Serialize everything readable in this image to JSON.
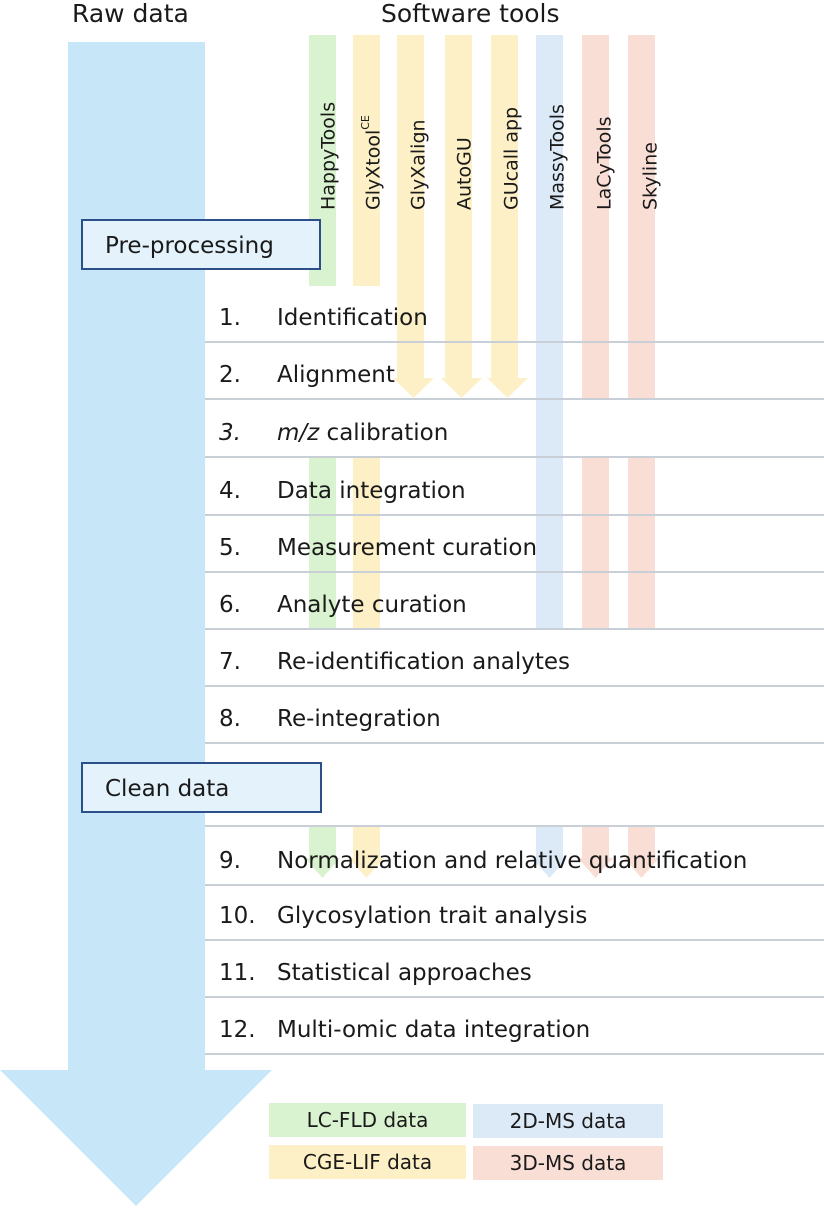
{
  "headers": {
    "raw_data": "Raw data",
    "software_tools": "Software tools"
  },
  "colors": {
    "raw_arrow": "#c7e6f8",
    "green": "#d9f2cf",
    "yellow": "#fdf0c6",
    "blue": "#dce9f7",
    "red": "#f9ded6",
    "box_border": "#2c4f8a",
    "box_fill": "#e3f2fb",
    "rule": "#c9cfd6"
  },
  "tools": [
    {
      "name": "HappyTools",
      "name_sup": "",
      "color": "green"
    },
    {
      "name": "GlyXtool",
      "name_sup": "CE",
      "color": "yellow"
    },
    {
      "name": "GlyXalign",
      "name_sup": "",
      "color": "yellow"
    },
    {
      "name": "AutoGU",
      "name_sup": "",
      "color": "yellow"
    },
    {
      "name": "GUcall app",
      "name_sup": "",
      "color": "yellow"
    },
    {
      "name": "MassyTools",
      "name_sup": "",
      "color": "blue"
    },
    {
      "name": "LaCyTools",
      "name_sup": "",
      "color": "red"
    },
    {
      "name": "Skyline",
      "name_sup": "",
      "color": "red"
    }
  ],
  "sections": {
    "pre_processing": "Pre-processing",
    "clean_data": "Clean data"
  },
  "steps": [
    {
      "num": "1.",
      "label": "Identification"
    },
    {
      "num": "2.",
      "label": "Alignment"
    },
    {
      "num": "3.",
      "label": "m/z calibration"
    },
    {
      "num": "4.",
      "label": "Data integration"
    },
    {
      "num": "5.",
      "label": "Measurement curation"
    },
    {
      "num": "6.",
      "label": "Analyte curation"
    },
    {
      "num": "7.",
      "label": "Re-identification analytes"
    },
    {
      "num": "8.",
      "label": "Re-integration"
    },
    {
      "num": "9.",
      "label": "Normalization and relative quantification"
    },
    {
      "num": "10.",
      "label": "Glycosylation trait analysis"
    },
    {
      "num": "11.",
      "label": "Statistical approaches"
    },
    {
      "num": "12.",
      "label": "Multi-omic data integration"
    }
  ],
  "legend": [
    {
      "label": "LC-FLD data",
      "color": "green"
    },
    {
      "label": "2D-MS data",
      "color": "blue"
    },
    {
      "label": "CGE-LIF data",
      "color": "yellow"
    },
    {
      "label": "3D-MS data",
      "color": "red"
    }
  ]
}
